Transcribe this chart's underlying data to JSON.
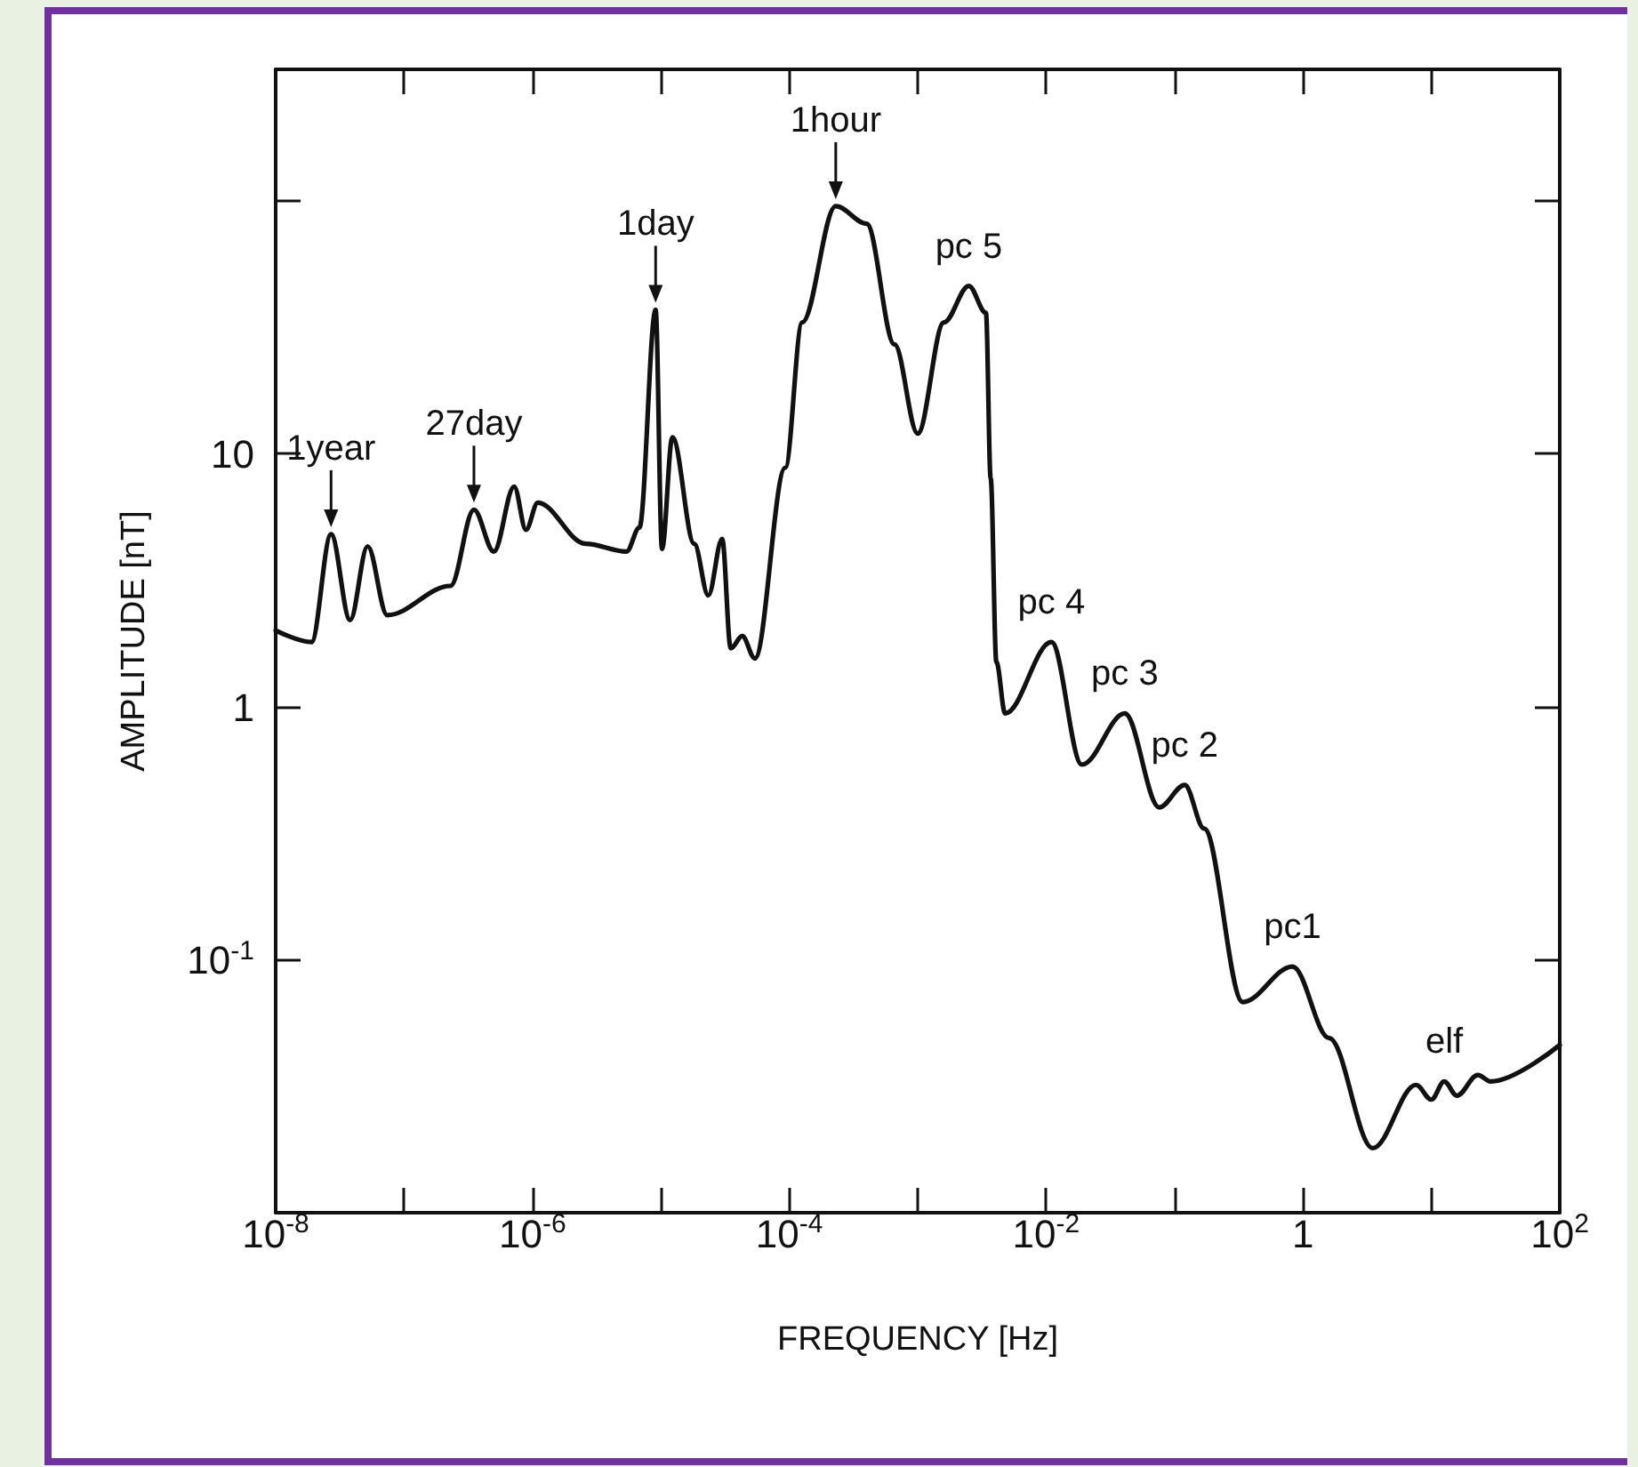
{
  "chart_data": {
    "type": "line",
    "xlabel": "FREQUENCY [Hz]",
    "ylabel": "AMPLITUDE [nT]",
    "log": "xy",
    "grid": false,
    "marker": "none",
    "line_style": "solid",
    "xlim": [
      1e-08,
      100
    ],
    "ylim": [
      0.01,
      330
    ],
    "xticks": [
      {
        "value": 1e-08,
        "label": "10$^{-8}$"
      },
      {
        "value": 1e-07,
        "label": null
      },
      {
        "value": 1e-06,
        "label": "10$^{-6}$"
      },
      {
        "value": 1e-05,
        "label": null
      },
      {
        "value": 0.0001,
        "label": "10$^{-4}$"
      },
      {
        "value": 0.001,
        "label": null
      },
      {
        "value": 0.01,
        "label": "10$^{-2}$"
      },
      {
        "value": 0.1,
        "label": null
      },
      {
        "value": 1,
        "label": "1"
      },
      {
        "value": 10,
        "label": null
      },
      {
        "value": 100,
        "label": "10$^{2}$"
      }
    ],
    "yticks": [
      {
        "value": 0.1,
        "label": "10$^{-1}$"
      },
      1,
      10,
      {
        "value": 100,
        "label": null
      }
    ],
    "series": [
      {
        "color": "#111111",
        "x": [
          1e-08,
          1.9e-08,
          2.7e-08,
          3.8e-08,
          5.2e-08,
          7.4e-08,
          2.3e-07,
          3.5e-07,
          5e-07,
          7.2e-07,
          8.9e-07,
          1.1e-06,
          2.6e-06,
          5.4e-06,
          6.8e-06,
          9.1e-06,
          1.02e-05,
          1.23e-05,
          1.82e-05,
          2.34e-05,
          3e-05,
          3.5e-05,
          4.3e-05,
          5.4e-05,
          9.3e-05,
          0.000126,
          0.00023,
          0.0004,
          0.00066,
          0.001,
          0.0016,
          0.0025,
          0.0034,
          0.0037,
          0.0041,
          0.0048,
          0.011,
          0.019,
          0.041,
          0.076,
          0.12,
          0.17,
          0.34,
          0.83,
          1.6,
          3.5,
          7.6,
          10,
          12.6,
          15.8,
          23,
          29,
          100
        ],
        "values": [
          2,
          1.8,
          4.8,
          2.2,
          4.3,
          2.3,
          3,
          6,
          4.1,
          7.4,
          5,
          6.4,
          4.4,
          4.1,
          5.1,
          37,
          4.2,
          11.6,
          4.4,
          2.75,
          4.6,
          1.7,
          1.9,
          1.55,
          8.8,
          33,
          95,
          81,
          27,
          12,
          33,
          46,
          36,
          8,
          1.5,
          0.94,
          1.8,
          0.59,
          0.94,
          0.4,
          0.49,
          0.33,
          0.068,
          0.094,
          0.049,
          0.018,
          0.032,
          0.028,
          0.033,
          0.029,
          0.035,
          0.033,
          0.046
        ]
      }
    ],
    "annotations": [
      {
        "text": "1year",
        "x": 2.7e-08,
        "y": 4.8
      },
      {
        "text": "27day",
        "x": 3.5e-07,
        "y": 6
      },
      {
        "text": "1day",
        "x": 9.1e-06,
        "y": 37
      },
      {
        "text": "1hour",
        "x": 0.00023,
        "y": 95
      },
      {
        "text": "pc 5",
        "x": 0.0025,
        "y": 46
      },
      {
        "text": "pc 4",
        "x": 0.011,
        "y": 1.8
      },
      {
        "text": "pc 3",
        "x": 0.041,
        "y": 0.94
      },
      {
        "text": "pc 2",
        "x": 0.12,
        "y": 0.49
      },
      {
        "text": "pc1",
        "x": 0.83,
        "y": 0.094
      },
      {
        "text": "elf",
        "x": 12.6,
        "y": 0.033
      }
    ]
  }
}
